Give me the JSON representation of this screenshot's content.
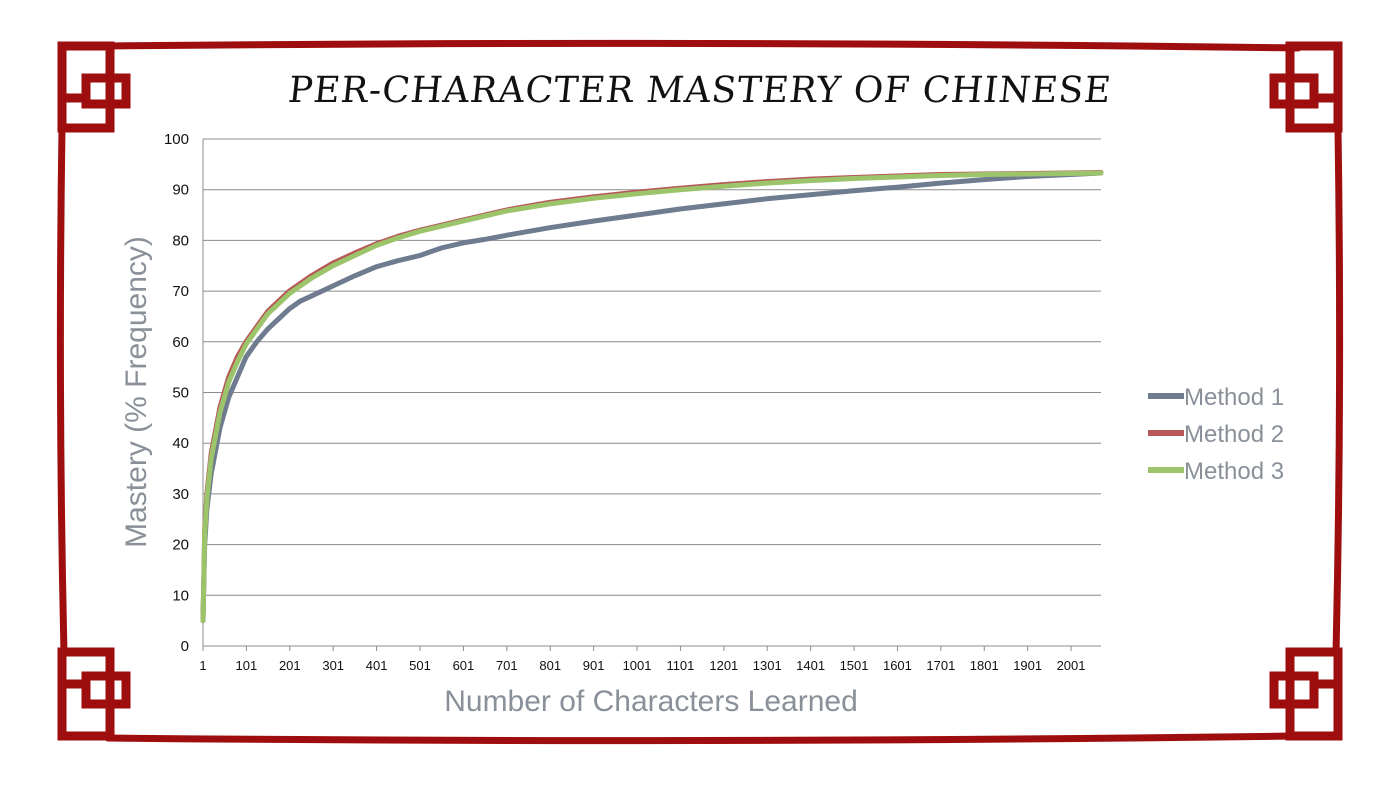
{
  "chart_data": {
    "type": "line",
    "title": "PER-CHARACTER MASTERY OF CHINESE",
    "xlabel": "Number of Characters Learned",
    "ylabel": "Mastery (% Frequency)",
    "xlim": [
      1,
      2070
    ],
    "ylim": [
      0,
      100
    ],
    "yticks": [
      "0",
      "10",
      "20",
      "30",
      "40",
      "50",
      "60",
      "70",
      "80",
      "90",
      "100"
    ],
    "xticks": [
      "1",
      "101",
      "201",
      "301",
      "401",
      "501",
      "601",
      "701",
      "801",
      "901",
      "1001",
      "1101",
      "1201",
      "1301",
      "1401",
      "1501",
      "1601",
      "1701",
      "1801",
      "1901",
      "2001"
    ],
    "grid": "horizontal",
    "legend_position": "right",
    "x": [
      1,
      5,
      10,
      20,
      40,
      60,
      80,
      100,
      125,
      150,
      175,
      200,
      225,
      250,
      300,
      350,
      400,
      450,
      500,
      550,
      600,
      650,
      700,
      800,
      900,
      1000,
      1100,
      1200,
      1300,
      1400,
      1500,
      1600,
      1700,
      1800,
      1900,
      2000,
      2070
    ],
    "series": [
      {
        "name": "Method 1",
        "color": "#6f7b8e",
        "values": [
          5,
          20,
          27,
          34,
          43,
          49,
          53,
          57,
          60,
          62.5,
          64.5,
          66.5,
          68,
          69,
          71,
          73,
          74.8,
          76,
          77,
          78.5,
          79.5,
          80.2,
          81,
          82.5,
          83.8,
          85,
          86.2,
          87.2,
          88.2,
          89,
          89.8,
          90.5,
          91.3,
          92,
          92.6,
          93,
          93.3
        ]
      },
      {
        "name": "Method 2",
        "color": "#b75757",
        "values": [
          5,
          23,
          30,
          38,
          47,
          53,
          57,
          60,
          63,
          66,
          68,
          70,
          71.5,
          73,
          75.5,
          77.5,
          79.3,
          80.8,
          82,
          83,
          84,
          85,
          86,
          87.5,
          88.6,
          89.5,
          90.3,
          91,
          91.6,
          92.1,
          92.4,
          92.7,
          93,
          93.1,
          93.2,
          93.3,
          93.4
        ]
      },
      {
        "name": "Method 3",
        "color": "#9cc46a",
        "values": [
          5,
          22,
          29,
          37,
          46,
          52,
          56,
          59.5,
          62.5,
          65.5,
          67.5,
          69.5,
          71,
          72.5,
          75,
          77,
          79,
          80.5,
          81.8,
          82.8,
          83.8,
          84.8,
          85.8,
          87.2,
          88.3,
          89.2,
          90,
          90.7,
          91.3,
          91.8,
          92.2,
          92.5,
          92.8,
          93,
          93.1,
          93.2,
          93.3
        ]
      }
    ]
  }
}
